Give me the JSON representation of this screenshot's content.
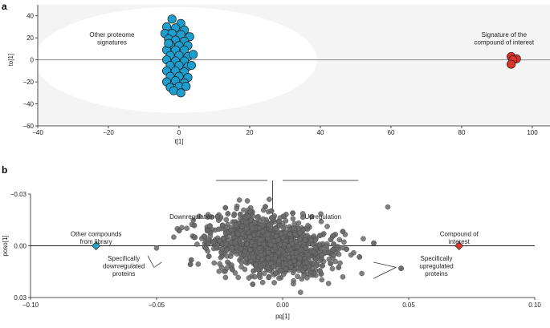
{
  "chart_data": [
    {
      "panel": "a",
      "type": "scatter",
      "title": "",
      "xlabel": "t[1]",
      "ylabel": "to[1]",
      "xlim": [
        -40,
        105
      ],
      "ylim": [
        -60,
        50
      ],
      "xticks": [
        -40,
        -20,
        0,
        20,
        40,
        60,
        80,
        100
      ],
      "yticks": [
        -60,
        -40,
        -20,
        0,
        20,
        40
      ],
      "tick_labels_x": [
        "−40",
        "−20",
        "0",
        "20",
        "40",
        "60",
        "80",
        "100"
      ],
      "tick_labels_y": [
        "−60",
        "−40",
        "−20",
        "0",
        "20",
        "40"
      ],
      "background": "#f4f4f4",
      "ellipse": {
        "center": [
          -1,
          0
        ],
        "rx": 40,
        "ry": 48,
        "color": "#ffffff"
      },
      "annotations": [
        {
          "id": "proteome",
          "lines": [
            "Other proteome",
            "signatures"
          ],
          "at": [
            -19,
            21
          ]
        },
        {
          "id": "compound",
          "lines": [
            "Signature of the",
            "compound of interest"
          ],
          "at": [
            92,
            21
          ]
        }
      ],
      "series": [
        {
          "name": "Other proteome signatures",
          "color": "#1c9fcf",
          "points": [
            [
              -2.0,
              37
            ],
            [
              0.5,
              33
            ],
            [
              -3.5,
              30
            ],
            [
              -1.0,
              29
            ],
            [
              1.5,
              27
            ],
            [
              -4.0,
              24
            ],
            [
              -2.0,
              24
            ],
            [
              0.5,
              23
            ],
            [
              3.0,
              21
            ],
            [
              -3.0,
              19
            ],
            [
              -1.0,
              18
            ],
            [
              1.5,
              17
            ],
            [
              -2.5,
              14
            ],
            [
              0.0,
              13
            ],
            [
              2.5,
              13
            ],
            [
              -3.5,
              9
            ],
            [
              -1.0,
              9
            ],
            [
              1.5,
              9
            ],
            [
              -2.5,
              4
            ],
            [
              0.0,
              4
            ],
            [
              2.5,
              3
            ],
            [
              -3.5,
              0
            ],
            [
              -1.0,
              -1
            ],
            [
              1.5,
              -1
            ],
            [
              -2.5,
              -5
            ],
            [
              0.0,
              -5
            ],
            [
              2.5,
              -6
            ],
            [
              -3.5,
              -10
            ],
            [
              -1.0,
              -10
            ],
            [
              1.5,
              -11
            ],
            [
              -2.5,
              -15
            ],
            [
              0.0,
              -15
            ],
            [
              2.5,
              -16
            ],
            [
              -3.5,
              -20
            ],
            [
              -1.0,
              -19
            ],
            [
              1.5,
              -21
            ],
            [
              -2.5,
              -25
            ],
            [
              0.0,
              -24
            ],
            [
              2.0,
              -24
            ],
            [
              -1.5,
              -28
            ],
            [
              0.5,
              -30
            ],
            [
              -3.0,
              15
            ],
            [
              3.5,
              -5
            ],
            [
              4.0,
              5
            ]
          ]
        },
        {
          "name": "Signature of the compound of interest",
          "color": "#d9352a",
          "points": [
            [
              94,
              3
            ],
            [
              95.5,
              1
            ],
            [
              94.5,
              0
            ],
            [
              94,
              -4
            ]
          ]
        }
      ]
    },
    {
      "panel": "b",
      "type": "scatter",
      "title": "",
      "xlabel": "pq[1]",
      "ylabel": "poso[1]",
      "xlim": [
        -0.1,
        0.1
      ],
      "ylim": [
        -0.03,
        0.03
      ],
      "y_inverted": true,
      "xticks": [
        -0.1,
        -0.05,
        0.0,
        0.05,
        0.1
      ],
      "yticks": [
        -0.03,
        0.0,
        0.03
      ],
      "tick_labels_x": [
        "−0.10",
        "−0.05",
        "0.00",
        "0.05",
        "0.10"
      ],
      "tick_labels_y": [
        "−0.03",
        "0.00",
        "0.03"
      ],
      "annotations": [
        {
          "id": "downregulation",
          "lines": [
            "Downregulation"
          ],
          "at": [
            -0.036,
            -0.0155
          ]
        },
        {
          "id": "upregulation",
          "lines": [
            "Upregulation"
          ],
          "at": [
            0.016,
            -0.0155
          ]
        },
        {
          "id": "other_compounds",
          "lines": [
            "Other compounds",
            "from library"
          ],
          "at": [
            -0.074,
            -0.0055
          ]
        },
        {
          "id": "compound_interest",
          "lines": [
            "Compound of",
            "interest"
          ],
          "at": [
            0.07,
            -0.0055
          ]
        },
        {
          "id": "down_proteins",
          "lines": [
            "Specifically",
            "downregulated",
            "proteins"
          ],
          "at": [
            -0.063,
            0.0085
          ]
        },
        {
          "id": "up_proteins",
          "lines": [
            "Specifically",
            "upregulated",
            "proteins"
          ],
          "at": [
            0.061,
            0.0085
          ]
        }
      ],
      "cloud": {
        "name": "Proteins",
        "color": "#6a6a6a",
        "count": 1500,
        "x_range": [
          -0.05,
          0.047
        ],
        "y_range": [
          -0.027,
          0.027
        ]
      },
      "markers": [
        {
          "name": "Other compounds from library",
          "x": -0.074,
          "y": 0.0,
          "color": "#1ea3c4",
          "shape": "diamond"
        },
        {
          "name": "Compound of interest",
          "x": 0.07,
          "y": 0.0,
          "color": "#d9382a",
          "shape": "diamond"
        }
      ]
    }
  ]
}
